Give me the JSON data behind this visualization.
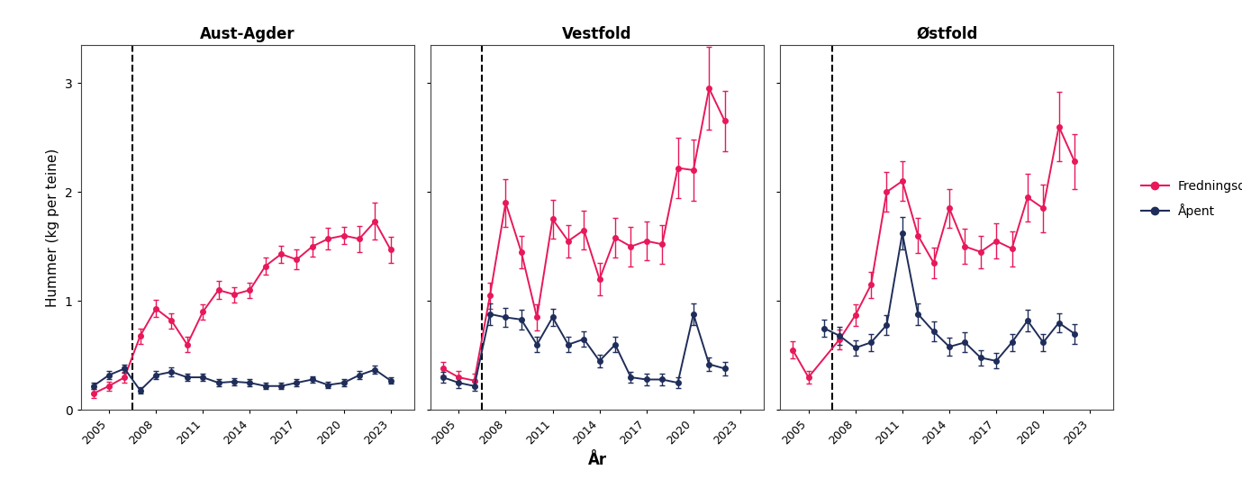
{
  "panels": [
    {
      "title": "Aust-Agder",
      "dashed_x": 2006.5,
      "red": {
        "x": [
          2004,
          2005,
          2006,
          2007,
          2008,
          2009,
          2010,
          2011,
          2012,
          2013,
          2014,
          2015,
          2016,
          2017,
          2018,
          2019,
          2020,
          2021,
          2022,
          2023
        ],
        "y": [
          0.15,
          0.22,
          0.3,
          0.68,
          0.93,
          0.82,
          0.6,
          0.9,
          1.1,
          1.06,
          1.1,
          1.32,
          1.43,
          1.38,
          1.5,
          1.57,
          1.6,
          1.57,
          1.73,
          1.47
        ],
        "yerr": [
          0.04,
          0.04,
          0.05,
          0.07,
          0.08,
          0.07,
          0.07,
          0.07,
          0.08,
          0.07,
          0.07,
          0.08,
          0.08,
          0.09,
          0.09,
          0.1,
          0.08,
          0.12,
          0.17,
          0.12
        ]
      },
      "dark": {
        "x": [
          2004,
          2005,
          2006,
          2007,
          2008,
          2009,
          2010,
          2011,
          2012,
          2013,
          2014,
          2015,
          2016,
          2017,
          2018,
          2019,
          2020,
          2021,
          2022,
          2023
        ],
        "y": [
          0.22,
          0.32,
          0.38,
          0.18,
          0.32,
          0.35,
          0.3,
          0.3,
          0.25,
          0.26,
          0.25,
          0.22,
          0.22,
          0.25,
          0.28,
          0.23,
          0.25,
          0.32,
          0.37,
          0.27
        ],
        "yerr": [
          0.03,
          0.04,
          0.04,
          0.03,
          0.04,
          0.04,
          0.03,
          0.03,
          0.03,
          0.03,
          0.03,
          0.03,
          0.03,
          0.03,
          0.03,
          0.03,
          0.03,
          0.04,
          0.04,
          0.03
        ]
      }
    },
    {
      "title": "Vestfold",
      "dashed_x": 2006.5,
      "red": {
        "x": [
          2004,
          2005,
          2006,
          2007,
          2008,
          2009,
          2010,
          2011,
          2012,
          2013,
          2014,
          2015,
          2016,
          2017,
          2018,
          2019,
          2020,
          2021,
          2022,
          2023
        ],
        "y": [
          0.38,
          0.3,
          0.27,
          1.05,
          1.9,
          1.45,
          0.85,
          1.75,
          1.55,
          1.65,
          1.2,
          1.58,
          1.5,
          1.55,
          1.52,
          2.22,
          2.2,
          2.95,
          2.65,
          null
        ],
        "yerr": [
          0.06,
          0.06,
          0.06,
          0.12,
          0.22,
          0.15,
          0.12,
          0.18,
          0.15,
          0.18,
          0.15,
          0.18,
          0.18,
          0.18,
          0.18,
          0.28,
          0.28,
          0.38,
          0.28,
          null
        ]
      },
      "dark": {
        "x": [
          2004,
          2005,
          2006,
          2007,
          2008,
          2009,
          2010,
          2011,
          2012,
          2013,
          2014,
          2015,
          2016,
          2017,
          2018,
          2019,
          2020,
          2021,
          2022,
          2023
        ],
        "y": [
          0.3,
          0.25,
          0.22,
          0.88,
          0.85,
          0.83,
          0.6,
          0.85,
          0.6,
          0.65,
          0.45,
          0.6,
          0.3,
          0.28,
          0.28,
          0.25,
          0.88,
          0.42,
          0.38,
          null
        ],
        "yerr": [
          0.05,
          0.05,
          0.04,
          0.1,
          0.09,
          0.09,
          0.07,
          0.08,
          0.07,
          0.07,
          0.06,
          0.07,
          0.05,
          0.05,
          0.05,
          0.05,
          0.1,
          0.06,
          0.06,
          null
        ]
      }
    },
    {
      "title": "Østfold",
      "dashed_x": 2006.5,
      "red": {
        "x": [
          2004,
          2005,
          2006,
          2007,
          2008,
          2009,
          2010,
          2011,
          2012,
          2013,
          2014,
          2015,
          2016,
          2017,
          2018,
          2019,
          2020,
          2021,
          2022,
          2023
        ],
        "y": [
          0.55,
          0.3,
          null,
          0.65,
          0.87,
          1.15,
          2.0,
          2.1,
          1.6,
          1.35,
          1.85,
          1.5,
          1.45,
          1.55,
          1.48,
          1.95,
          1.85,
          2.6,
          2.28,
          null
        ],
        "yerr": [
          0.08,
          0.06,
          null,
          0.09,
          0.1,
          0.12,
          0.18,
          0.18,
          0.16,
          0.14,
          0.18,
          0.16,
          0.15,
          0.16,
          0.16,
          0.22,
          0.22,
          0.32,
          0.25,
          null
        ]
      },
      "dark": {
        "x": [
          2004,
          2005,
          2006,
          2007,
          2008,
          2009,
          2010,
          2011,
          2012,
          2013,
          2014,
          2015,
          2016,
          2017,
          2018,
          2019,
          2020,
          2021,
          2022,
          2023
        ],
        "y": [
          null,
          null,
          0.75,
          0.68,
          0.57,
          0.62,
          0.78,
          1.62,
          0.88,
          0.72,
          0.58,
          0.62,
          0.48,
          0.45,
          0.62,
          0.82,
          0.62,
          0.8,
          0.7,
          null
        ],
        "yerr": [
          null,
          null,
          0.08,
          0.08,
          0.07,
          0.08,
          0.09,
          0.15,
          0.1,
          0.09,
          0.08,
          0.09,
          0.07,
          0.07,
          0.08,
          0.1,
          0.08,
          0.09,
          0.09,
          null
        ]
      }
    }
  ],
  "ylim": [
    0,
    3.35
  ],
  "yticks": [
    0,
    1,
    2,
    3
  ],
  "xticks": [
    2005,
    2008,
    2011,
    2014,
    2017,
    2020,
    2023
  ],
  "xlabel": "År",
  "ylabel": "Hummer (kg per teine)",
  "red_color": "#E8185A",
  "dark_color": "#1F2D5A",
  "legend_labels": [
    "Fredningsområde",
    "Åpent"
  ],
  "background_color": "#ffffff"
}
